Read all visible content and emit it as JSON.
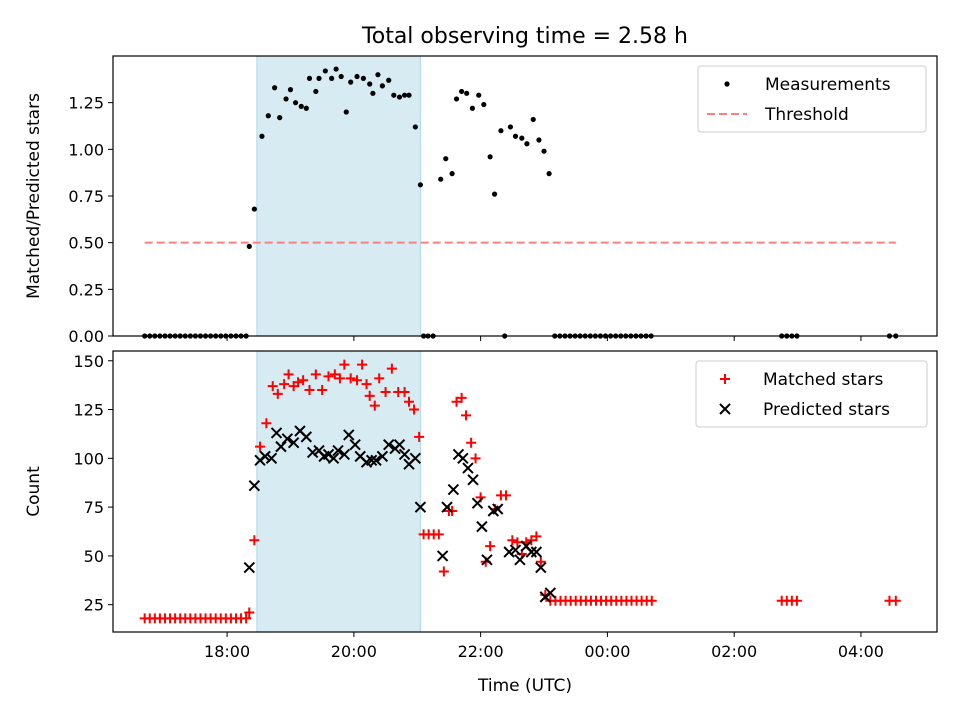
{
  "figure": {
    "title": "Total observing time = 2.58 h",
    "xlabel": "Time (UTC)"
  },
  "colors": {
    "shade": "#add8e6",
    "threshold": "#ff7f7f",
    "matched": "#ff0000",
    "predicted": "#000000",
    "measurement": "#000000"
  },
  "chart_data": [
    {
      "type": "scatter",
      "ylabel": "Matched/Predicted stars",
      "xlim_hours": [
        16.2,
        29.2
      ],
      "ylim": [
        0,
        1.5
      ],
      "x_ticks": [
        "18:00",
        "20:00",
        "22:00",
        "00:00",
        "02:00",
        "04:00"
      ],
      "y_ticks": [
        "0.00",
        "0.25",
        "0.50",
        "0.75",
        "1.00",
        "1.25"
      ],
      "shaded_interval_hours": [
        18.47,
        21.05
      ],
      "legend_position": "top-right",
      "threshold": {
        "name": "Threshold",
        "value": 0.5,
        "x_range_hours": [
          16.7,
          28.55
        ]
      },
      "series": [
        {
          "name": "Measurements",
          "points": [
            [
              16.7,
              0
            ],
            [
              16.78,
              0
            ],
            [
              16.86,
              0
            ],
            [
              16.94,
              0
            ],
            [
              17.02,
              0
            ],
            [
              17.1,
              0
            ],
            [
              17.18,
              0
            ],
            [
              17.26,
              0
            ],
            [
              17.34,
              0
            ],
            [
              17.42,
              0
            ],
            [
              17.5,
              0
            ],
            [
              17.58,
              0
            ],
            [
              17.66,
              0
            ],
            [
              17.74,
              0
            ],
            [
              17.82,
              0
            ],
            [
              17.9,
              0
            ],
            [
              17.98,
              0
            ],
            [
              18.06,
              0
            ],
            [
              18.14,
              0
            ],
            [
              18.22,
              0
            ],
            [
              18.3,
              0
            ],
            [
              18.35,
              0.48
            ],
            [
              18.43,
              0.68
            ],
            [
              18.55,
              1.07
            ],
            [
              18.65,
              1.18
            ],
            [
              18.75,
              1.33
            ],
            [
              18.83,
              1.17
            ],
            [
              18.93,
              1.27
            ],
            [
              19.0,
              1.32
            ],
            [
              19.08,
              1.25
            ],
            [
              19.17,
              1.23
            ],
            [
              19.25,
              1.22
            ],
            [
              19.3,
              1.38
            ],
            [
              19.4,
              1.31
            ],
            [
              19.45,
              1.38
            ],
            [
              19.55,
              1.42
            ],
            [
              19.65,
              1.38
            ],
            [
              19.72,
              1.43
            ],
            [
              19.8,
              1.39
            ],
            [
              19.88,
              1.2
            ],
            [
              19.95,
              1.36
            ],
            [
              20.05,
              1.39
            ],
            [
              20.15,
              1.38
            ],
            [
              20.25,
              1.35
            ],
            [
              20.3,
              1.3
            ],
            [
              20.38,
              1.4
            ],
            [
              20.45,
              1.34
            ],
            [
              20.55,
              1.37
            ],
            [
              20.63,
              1.29
            ],
            [
              20.72,
              1.28
            ],
            [
              20.8,
              1.29
            ],
            [
              20.87,
              1.29
            ],
            [
              20.97,
              1.12
            ],
            [
              21.05,
              0.81
            ],
            [
              21.1,
              0
            ],
            [
              21.17,
              0
            ],
            [
              21.25,
              0
            ],
            [
              21.37,
              0.84
            ],
            [
              21.45,
              0.95
            ],
            [
              21.55,
              0.87
            ],
            [
              21.62,
              1.27
            ],
            [
              21.7,
              1.31
            ],
            [
              21.78,
              1.3
            ],
            [
              21.87,
              1.22
            ],
            [
              21.97,
              1.29
            ],
            [
              22.05,
              1.24
            ],
            [
              22.15,
              0.96
            ],
            [
              22.22,
              0.76
            ],
            [
              22.32,
              1.1
            ],
            [
              22.38,
              0
            ],
            [
              22.47,
              1.12
            ],
            [
              22.55,
              1.07
            ],
            [
              22.65,
              1.06
            ],
            [
              22.73,
              1.03
            ],
            [
              22.83,
              1.16
            ],
            [
              22.92,
              1.05
            ],
            [
              23.0,
              0.99
            ],
            [
              23.08,
              0.87
            ],
            [
              23.17,
              0
            ],
            [
              23.25,
              0
            ],
            [
              23.33,
              0
            ],
            [
              23.41,
              0
            ],
            [
              23.49,
              0
            ],
            [
              23.57,
              0
            ],
            [
              23.65,
              0
            ],
            [
              23.73,
              0
            ],
            [
              23.81,
              0
            ],
            [
              23.89,
              0
            ],
            [
              23.97,
              0
            ],
            [
              24.05,
              0
            ],
            [
              24.13,
              0
            ],
            [
              24.21,
              0
            ],
            [
              24.29,
              0
            ],
            [
              24.37,
              0
            ],
            [
              24.45,
              0
            ],
            [
              24.53,
              0
            ],
            [
              24.61,
              0
            ],
            [
              24.69,
              0
            ],
            [
              26.75,
              0
            ],
            [
              26.83,
              0
            ],
            [
              26.91,
              0
            ],
            [
              26.99,
              0
            ],
            [
              28.45,
              0
            ],
            [
              28.55,
              0
            ]
          ]
        }
      ]
    },
    {
      "type": "scatter",
      "ylabel": "Count",
      "xlim_hours": [
        16.2,
        29.2
      ],
      "ylim": [
        11,
        155
      ],
      "x_ticks": [
        "18:00",
        "20:00",
        "22:00",
        "00:00",
        "02:00",
        "04:00"
      ],
      "y_ticks": [
        "25",
        "50",
        "75",
        "100",
        "125",
        "150"
      ],
      "shaded_interval_hours": [
        18.47,
        21.05
      ],
      "legend_position": "top-right",
      "series": [
        {
          "name": "Matched stars",
          "marker": "+",
          "points": [
            [
              16.7,
              18
            ],
            [
              16.78,
              18
            ],
            [
              16.86,
              18
            ],
            [
              16.94,
              18
            ],
            [
              17.02,
              18
            ],
            [
              17.1,
              18
            ],
            [
              17.18,
              18
            ],
            [
              17.26,
              18
            ],
            [
              17.34,
              18
            ],
            [
              17.42,
              18
            ],
            [
              17.5,
              18
            ],
            [
              17.58,
              18
            ],
            [
              17.66,
              18
            ],
            [
              17.74,
              18
            ],
            [
              17.82,
              18
            ],
            [
              17.9,
              18
            ],
            [
              17.98,
              18
            ],
            [
              18.06,
              18
            ],
            [
              18.14,
              18
            ],
            [
              18.22,
              18
            ],
            [
              18.3,
              18
            ],
            [
              18.35,
              21
            ],
            [
              18.43,
              58
            ],
            [
              18.52,
              106
            ],
            [
              18.62,
              118
            ],
            [
              18.72,
              137
            ],
            [
              18.8,
              133
            ],
            [
              18.9,
              138
            ],
            [
              18.97,
              143
            ],
            [
              19.05,
              137
            ],
            [
              19.12,
              139
            ],
            [
              19.2,
              140
            ],
            [
              19.3,
              135
            ],
            [
              19.4,
              143
            ],
            [
              19.5,
              135
            ],
            [
              19.6,
              142
            ],
            [
              19.7,
              143
            ],
            [
              19.78,
              141
            ],
            [
              19.85,
              148
            ],
            [
              19.95,
              141
            ],
            [
              20.05,
              140
            ],
            [
              20.13,
              148
            ],
            [
              20.2,
              138
            ],
            [
              20.25,
              132
            ],
            [
              20.33,
              127
            ],
            [
              20.4,
              141
            ],
            [
              20.5,
              134
            ],
            [
              20.6,
              146
            ],
            [
              20.7,
              134
            ],
            [
              20.8,
              134
            ],
            [
              20.87,
              129
            ],
            [
              20.95,
              125
            ],
            [
              21.03,
              111
            ],
            [
              21.1,
              61
            ],
            [
              21.18,
              61
            ],
            [
              21.26,
              61
            ],
            [
              21.34,
              61
            ],
            [
              21.42,
              42
            ],
            [
              21.5,
              73
            ],
            [
              21.55,
              73
            ],
            [
              21.62,
              129
            ],
            [
              21.7,
              131
            ],
            [
              21.77,
              122
            ],
            [
              21.85,
              108
            ],
            [
              21.92,
              100
            ],
            [
              22.0,
              80
            ],
            [
              22.08,
              47
            ],
            [
              22.15,
              55
            ],
            [
              22.23,
              74
            ],
            [
              22.32,
              81
            ],
            [
              22.4,
              81
            ],
            [
              22.5,
              58
            ],
            [
              22.58,
              57
            ],
            [
              22.65,
              51
            ],
            [
              22.72,
              57
            ],
            [
              22.8,
              58
            ],
            [
              22.88,
              60
            ],
            [
              22.95,
              47
            ],
            [
              23.02,
              30
            ],
            [
              23.1,
              27
            ],
            [
              23.18,
              27
            ],
            [
              23.26,
              27
            ],
            [
              23.34,
              27
            ],
            [
              23.42,
              27
            ],
            [
              23.5,
              27
            ],
            [
              23.58,
              27
            ],
            [
              23.66,
              27
            ],
            [
              23.74,
              27
            ],
            [
              23.82,
              27
            ],
            [
              23.9,
              27
            ],
            [
              23.98,
              27
            ],
            [
              24.06,
              27
            ],
            [
              24.14,
              27
            ],
            [
              24.22,
              27
            ],
            [
              24.3,
              27
            ],
            [
              24.38,
              27
            ],
            [
              24.46,
              27
            ],
            [
              24.54,
              27
            ],
            [
              24.62,
              27
            ],
            [
              24.7,
              27
            ],
            [
              26.75,
              27
            ],
            [
              26.83,
              27
            ],
            [
              26.91,
              27
            ],
            [
              26.99,
              27
            ],
            [
              28.45,
              27
            ],
            [
              28.55,
              27
            ]
          ]
        },
        {
          "name": "Predicted stars",
          "marker": "x",
          "points": [
            [
              18.35,
              44
            ],
            [
              18.43,
              86
            ],
            [
              18.52,
              99
            ],
            [
              18.6,
              101
            ],
            [
              18.7,
              100
            ],
            [
              18.78,
              113
            ],
            [
              18.85,
              106
            ],
            [
              18.95,
              110
            ],
            [
              19.05,
              108
            ],
            [
              19.15,
              114
            ],
            [
              19.25,
              111
            ],
            [
              19.35,
              103
            ],
            [
              19.45,
              104
            ],
            [
              19.53,
              101
            ],
            [
              19.6,
              102
            ],
            [
              19.68,
              100
            ],
            [
              19.75,
              104
            ],
            [
              19.85,
              102
            ],
            [
              19.92,
              112
            ],
            [
              20.02,
              107
            ],
            [
              20.1,
              101
            ],
            [
              20.2,
              98
            ],
            [
              20.28,
              99
            ],
            [
              20.35,
              99
            ],
            [
              20.45,
              101
            ],
            [
              20.55,
              107
            ],
            [
              20.65,
              105
            ],
            [
              20.72,
              107
            ],
            [
              20.8,
              102
            ],
            [
              20.87,
              97
            ],
            [
              20.97,
              100
            ],
            [
              21.05,
              75
            ],
            [
              21.4,
              50
            ],
            [
              21.47,
              75
            ],
            [
              21.57,
              84
            ],
            [
              21.65,
              102
            ],
            [
              21.72,
              100
            ],
            [
              21.8,
              95
            ],
            [
              21.88,
              89
            ],
            [
              21.95,
              77
            ],
            [
              22.02,
              65
            ],
            [
              22.1,
              48
            ],
            [
              22.2,
              73
            ],
            [
              22.27,
              74
            ],
            [
              22.45,
              52
            ],
            [
              22.55,
              53
            ],
            [
              22.62,
              48
            ],
            [
              22.72,
              55
            ],
            [
              22.8,
              52
            ],
            [
              22.88,
              52
            ],
            [
              22.95,
              44
            ],
            [
              23.02,
              29
            ],
            [
              23.1,
              31
            ]
          ]
        }
      ]
    }
  ]
}
